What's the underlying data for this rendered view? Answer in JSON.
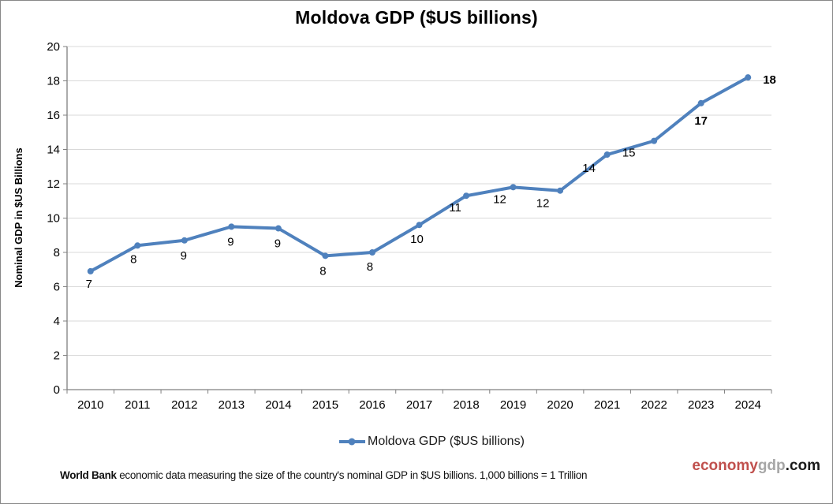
{
  "chart_data": {
    "type": "line",
    "title": "Moldova GDP ($US billions)",
    "categories": [
      "2010",
      "2011",
      "2012",
      "2013",
      "2014",
      "2015",
      "2016",
      "2017",
      "2018",
      "2019",
      "2020",
      "2021",
      "2022",
      "2023",
      "2024"
    ],
    "series": [
      {
        "name": "Moldova GDP ($US billions)",
        "values": [
          6.9,
          8.4,
          8.7,
          9.5,
          9.4,
          7.8,
          8.0,
          9.6,
          11.3,
          11.8,
          11.6,
          13.7,
          14.5,
          16.7,
          18.2
        ],
        "point_labels": [
          "7",
          "8",
          "9",
          "9",
          "9",
          "8",
          "8",
          "10",
          "11",
          "12",
          "12",
          "14",
          "15",
          "17",
          "18"
        ],
        "emphasized_labels": [
          "17",
          "18"
        ],
        "color": "#4F81BD"
      }
    ],
    "xlabel": "",
    "ylabel": "Nominal GDP in $US Billions",
    "ylim": [
      0,
      20
    ],
    "ytick_step": 2,
    "yticks": [
      "0",
      "2",
      "4",
      "6",
      "8",
      "10",
      "12",
      "14",
      "16",
      "18",
      "20"
    ],
    "grid": true,
    "legend_position": "bottom",
    "marker": "circle"
  },
  "legend": {
    "label": "Moldova GDP ($US billions)"
  },
  "footer": {
    "source_bold": "World Bank",
    "source_rest": " economic data  measuring the size of the country's nominal GDP in $US billions. 1,000 billions = 1 Trillion"
  },
  "watermark": {
    "part_economy": "economy",
    "part_gdp": "gdp",
    "part_com": ".com",
    "economy_color": "#c0504d",
    "gdp_color": "#a6a6a6",
    "com_color": "#1a1a1a"
  },
  "colors": {
    "series": "#4F81BD",
    "gridline": "#d9d9d9",
    "axis": "#808080",
    "label_text": "#000000"
  }
}
